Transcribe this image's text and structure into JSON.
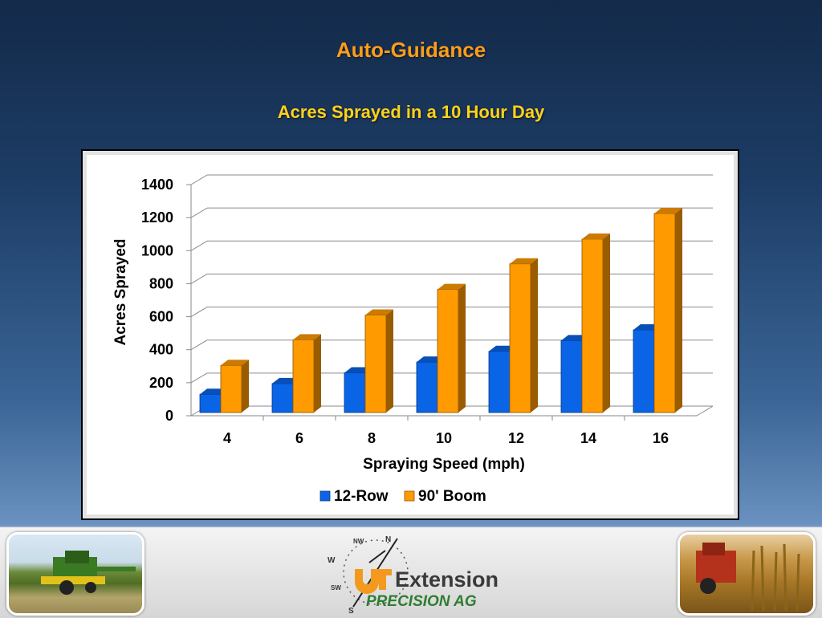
{
  "slide": {
    "title": "Auto-Guidance",
    "subtitle": "Acres Sprayed in a 10 Hour Day"
  },
  "chart_data": {
    "type": "bar",
    "style": "3d-clustered-column",
    "categories": [
      "4",
      "6",
      "8",
      "10",
      "12",
      "14",
      "16"
    ],
    "series": [
      {
        "name": "12-Row",
        "values": [
          130,
          195,
          260,
          325,
          390,
          455,
          520
        ],
        "color": "#0a64e6"
      },
      {
        "name": "90' Boom",
        "values": [
          305,
          460,
          610,
          765,
          920,
          1070,
          1225
        ],
        "color": "#ff9a00"
      }
    ],
    "xlabel": "Spraying Speed (mph)",
    "ylabel": "Acres Sprayed",
    "ylim": [
      0,
      1400
    ],
    "yticks": [
      0,
      200,
      400,
      600,
      800,
      1000,
      1200,
      1400
    ],
    "grid": true,
    "legend_position": "bottom"
  },
  "footer": {
    "logo_word": "Extension",
    "logo_sub": "PRECISION AG",
    "compass": [
      "N",
      "NW",
      "W",
      "SW",
      "S"
    ],
    "left_photo": "combine-harvester-photo",
    "right_photo": "corn-harvest-photo"
  },
  "colors": {
    "title": "#ff9d1a",
    "subtitle": "#ffd21a",
    "logo_orange": "#f39a1e",
    "logo_green": "#2e7d32"
  }
}
